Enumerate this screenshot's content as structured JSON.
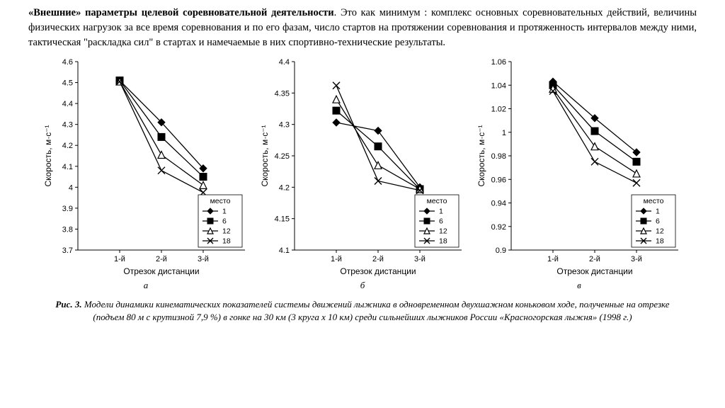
{
  "paragraph": {
    "bold_lead": "«Внешние» параметры целевой соревновательной деятельности",
    "rest": ". Это как минимум : комплекс основных соревновательных действий, величины физических нагрузок за все время соревнования и по его фазам, число стартов на протяжении соревнования и протяженность интервалов между ними, тактическая \"раскладка сил\" в стартах и намечаемые в них спортивно-технические результаты."
  },
  "charts": {
    "categories": [
      "1-й",
      "2-й",
      "3-й"
    ],
    "xlabel": "Отрезок дистанции",
    "ylabel": "Скорость, м·с⁻¹",
    "legend_title": "место",
    "legend_items": [
      "1",
      "6",
      "12",
      "18"
    ],
    "series_markers": [
      "diamond-filled",
      "square-filled",
      "triangle-open",
      "x"
    ],
    "line_color": "#000000",
    "axis_color": "#000000",
    "background_color": "#ffffff",
    "axis_fontsize": 11,
    "label_fontsize": 12,
    "line_width": 1.3,
    "marker_size": 5,
    "panels": [
      {
        "sublabel": "а",
        "ylim": [
          3.7,
          4.6
        ],
        "ytick_step": 0.1,
        "legend_pos": "bottom-right",
        "series": [
          [
            4.51,
            4.31,
            4.09
          ],
          [
            4.51,
            4.24,
            4.05
          ],
          [
            4.505,
            4.155,
            4.01
          ],
          [
            4.505,
            4.08,
            3.975
          ]
        ]
      },
      {
        "sublabel": "б",
        "ylim": [
          4.1,
          4.4
        ],
        "ytick_step": 0.05,
        "legend_pos": "bottom-right",
        "series": [
          [
            4.303,
            4.29,
            4.2
          ],
          [
            4.322,
            4.265,
            4.197
          ],
          [
            4.34,
            4.235,
            4.197
          ],
          [
            4.362,
            4.21,
            4.195
          ]
        ]
      },
      {
        "sublabel": "в",
        "ylim": [
          0.9,
          1.06
        ],
        "ytick_step": 0.02,
        "legend_pos": "bottom-right",
        "series": [
          [
            1.043,
            1.012,
            0.983
          ],
          [
            1.04,
            1.001,
            0.975
          ],
          [
            1.037,
            0.988,
            0.965
          ],
          [
            1.035,
            0.975,
            0.957
          ]
        ]
      }
    ]
  },
  "caption": {
    "label": "Рис. 3.",
    "text": " Модели динамики кинематических показателей системы движений лыжника в одновременном двухшажном коньковом ходе, полученные на отрезке (подъем 80 м с крутизной 7,9 %) в гонке на 30 км (3 круга х 10 км) среди сильнейших лыжников России «Красногорская лыжня» (1998 г.)"
  }
}
